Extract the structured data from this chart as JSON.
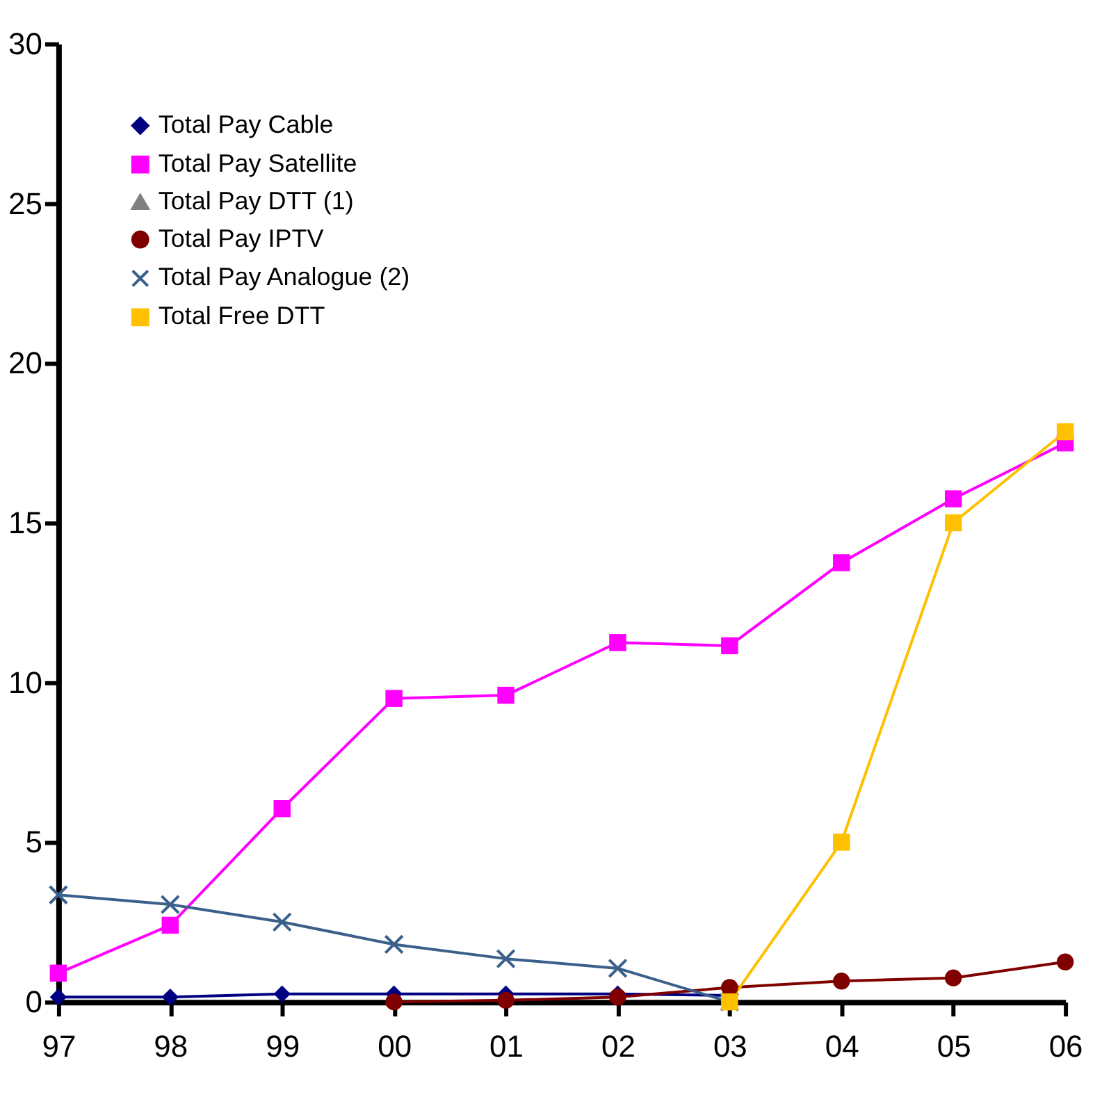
{
  "chart_data": {
    "type": "line",
    "categories": [
      "97",
      "98",
      "99",
      "00",
      "01",
      "02",
      "03",
      "04",
      "05",
      "06"
    ],
    "series": [
      {
        "name": "Total Pay Cable",
        "color": "#000080",
        "marker": "diamond",
        "values": [
          0.15,
          0.15,
          0.25,
          0.25,
          0.25,
          0.25,
          0.2,
          null,
          null,
          null
        ]
      },
      {
        "name": "Total Pay Satellite",
        "color": "#ff00ff",
        "marker": "square",
        "values": [
          0.9,
          2.4,
          6.05,
          9.5,
          9.6,
          11.25,
          11.15,
          13.75,
          15.75,
          17.5
        ]
      },
      {
        "name": "Total Pay DTT (1)",
        "color": "#808080",
        "marker": "triangle",
        "values": [
          null,
          null,
          null,
          null,
          null,
          null,
          null,
          null,
          null,
          null
        ]
      },
      {
        "name": "Total Pay IPTV",
        "color": "#800000",
        "marker": "circle",
        "values": [
          null,
          null,
          null,
          0.0,
          0.05,
          0.15,
          0.45,
          0.65,
          0.75,
          1.25
        ]
      },
      {
        "name": "Total Pay Analogue (2)",
        "color": "#3a5f8a",
        "marker": "cross",
        "values": [
          3.35,
          3.05,
          2.5,
          1.8,
          1.35,
          1.05,
          0.0,
          null,
          null,
          null
        ]
      },
      {
        "name": "Total Free DTT",
        "color": "#ffc000",
        "marker": "square",
        "values": [
          null,
          null,
          null,
          null,
          null,
          null,
          0.0,
          5.0,
          15.0,
          17.85
        ]
      }
    ],
    "ylim": [
      0,
      30
    ],
    "yticks": [
      0,
      5,
      10,
      15,
      20,
      25,
      30
    ],
    "grid": false,
    "legend": "top left",
    "line_style": "solid"
  }
}
